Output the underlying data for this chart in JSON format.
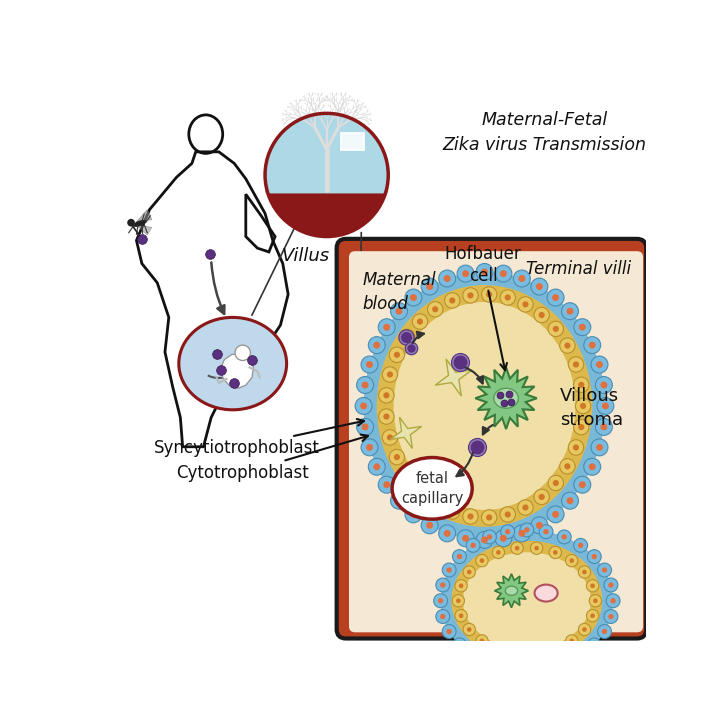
{
  "bg_color": "#ffffff",
  "dark_red": "#8B1818",
  "light_blue_villus": "#ADD8E6",
  "purple_virus": "#5B3080",
  "outer_bg": "#B84020",
  "maternal_blood_bg": "#F5E8D5",
  "labels": {
    "title": "Maternal-Fetal\nZika virus Transmission",
    "villus": "Villus",
    "hofbauer": "Hofbauer\ncell",
    "terminal_villi": "Terminal villi",
    "maternal_blood": "Maternal\nblood",
    "villous_stroma": "Villous\nstroma",
    "fetal_capillary": "fetal\ncapillary",
    "syncytio": "Syncytiotrophoblast",
    "cyto": "Cytotrophoblast"
  }
}
